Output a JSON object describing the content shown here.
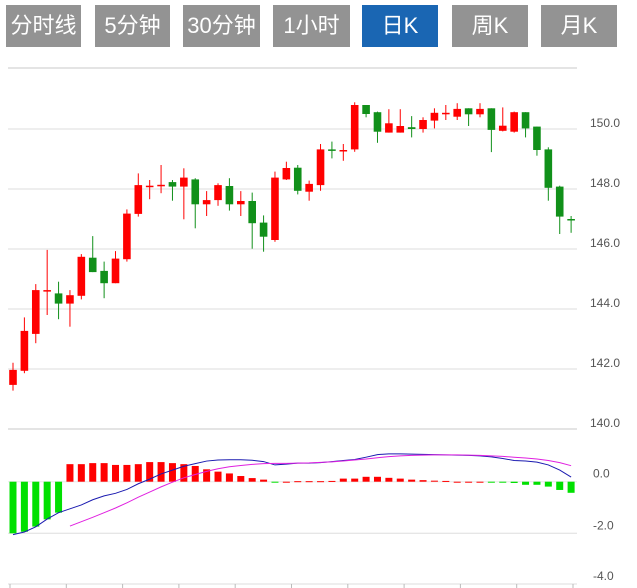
{
  "tabs": [
    {
      "label": "分时线",
      "active": false
    },
    {
      "label": "5分钟",
      "active": false
    },
    {
      "label": "30分钟",
      "active": false
    },
    {
      "label": "1小时",
      "active": false
    },
    {
      "label": "日K",
      "active": true
    },
    {
      "label": "周K",
      "active": false
    },
    {
      "label": "月K",
      "active": false
    }
  ],
  "colors": {
    "up": "#ff0000",
    "down": "#11901a",
    "hist_up": "#ff0000",
    "hist_down": "#00e000",
    "dif": "#1a1ab0",
    "dea": "#e020e0",
    "tab_bg": "#939393",
    "tab_active": "#1a66b3"
  },
  "chart_data": [
    {
      "type": "candlestick",
      "title": "",
      "ylim": [
        140,
        152
      ],
      "yticks": [
        "150.0",
        "148.0",
        "146.0",
        "144.0",
        "142.0",
        "140.0"
      ],
      "ytick_values": [
        150,
        148,
        146,
        144,
        142,
        140
      ],
      "ohlc": [
        [
          141.47,
          142.21,
          141.28,
          141.97
        ],
        [
          141.94,
          143.72,
          141.86,
          143.27
        ],
        [
          143.17,
          144.83,
          142.86,
          144.63
        ],
        [
          144.62,
          145.97,
          143.8,
          144.63
        ],
        [
          144.52,
          144.91,
          143.66,
          144.18
        ],
        [
          144.18,
          144.63,
          143.41,
          144.46
        ],
        [
          144.44,
          145.83,
          144.32,
          145.74
        ],
        [
          145.71,
          146.43,
          145.23,
          145.23
        ],
        [
          145.27,
          145.58,
          144.36,
          144.86
        ],
        [
          144.86,
          145.93,
          144.86,
          145.68
        ],
        [
          145.66,
          147.32,
          145.58,
          147.18
        ],
        [
          147.17,
          148.52,
          147.08,
          148.13
        ],
        [
          148.1,
          148.3,
          147.66,
          148.11
        ],
        [
          148.13,
          148.8,
          147.86,
          148.14
        ],
        [
          148.23,
          148.3,
          147.61,
          148.08
        ],
        [
          148.08,
          148.69,
          146.99,
          148.38
        ],
        [
          148.32,
          148.36,
          146.69,
          147.49
        ],
        [
          147.49,
          147.93,
          147.1,
          147.63
        ],
        [
          147.63,
          148.19,
          147.44,
          148.13
        ],
        [
          148.1,
          148.36,
          147.28,
          147.49
        ],
        [
          147.49,
          147.93,
          147.1,
          147.6
        ],
        [
          147.6,
          147.88,
          146.01,
          146.86
        ],
        [
          146.88,
          147.12,
          145.91,
          146.41
        ],
        [
          146.3,
          148.58,
          146.24,
          148.38
        ],
        [
          148.32,
          148.91,
          148.3,
          148.7
        ],
        [
          148.71,
          148.8,
          147.82,
          147.94
        ],
        [
          147.91,
          148.28,
          147.61,
          148.17
        ],
        [
          148.13,
          149.5,
          147.94,
          149.32
        ],
        [
          149.32,
          149.58,
          149.02,
          149.27
        ],
        [
          149.27,
          149.5,
          148.94,
          149.3
        ],
        [
          149.32,
          150.89,
          149.24,
          150.8
        ],
        [
          150.8,
          150.8,
          150.39,
          150.5
        ],
        [
          150.56,
          150.58,
          149.54,
          149.91
        ],
        [
          149.88,
          150.66,
          149.88,
          150.19
        ],
        [
          149.88,
          150.66,
          149.88,
          150.1
        ],
        [
          150.06,
          150.43,
          149.72,
          150.0
        ],
        [
          150.0,
          150.39,
          149.88,
          150.3
        ],
        [
          150.28,
          150.69,
          150.02,
          150.54
        ],
        [
          150.52,
          150.8,
          150.3,
          150.54
        ],
        [
          150.41,
          150.86,
          150.3,
          150.67
        ],
        [
          150.69,
          150.69,
          150.1,
          150.49
        ],
        [
          150.49,
          150.86,
          150.39,
          150.67
        ],
        [
          150.69,
          150.69,
          149.23,
          149.97
        ],
        [
          149.94,
          150.72,
          149.92,
          150.11
        ],
        [
          149.91,
          150.58,
          149.88,
          150.56
        ],
        [
          150.56,
          150.56,
          149.72,
          150.02
        ],
        [
          150.08,
          150.08,
          149.11,
          149.3
        ],
        [
          149.32,
          149.39,
          147.61,
          148.04
        ],
        [
          148.08,
          148.11,
          146.5,
          147.08
        ],
        [
          147.0,
          147.1,
          146.54,
          146.96
        ]
      ]
    },
    {
      "type": "macd",
      "ylim": [
        -4,
        1.7
      ],
      "yticks": [
        "0.0",
        "-2.0",
        "-4.0"
      ],
      "ytick_values": [
        0,
        -2,
        -4
      ],
      "histogram": [
        -2.0,
        -1.94,
        -1.74,
        -1.46,
        -1.2,
        0.68,
        0.68,
        0.72,
        0.72,
        0.65,
        0.65,
        0.68,
        0.76,
        0.76,
        0.72,
        0.68,
        0.61,
        0.48,
        0.39,
        0.32,
        0.22,
        0.14,
        0.08,
        -0.02,
        0.0,
        0.02,
        0.02,
        0.02,
        0.03,
        0.12,
        0.12,
        0.19,
        0.19,
        0.15,
        0.12,
        0.08,
        0.06,
        0.04,
        0.03,
        0.0,
        0.0,
        0.0,
        -0.03,
        -0.03,
        -0.05,
        -0.12,
        -0.12,
        -0.19,
        -0.32,
        -0.43
      ],
      "dif": [
        -2.05,
        -1.95,
        -1.75,
        -1.45,
        -1.2,
        -1.05,
        -0.9,
        -0.7,
        -0.55,
        -0.45,
        -0.3,
        -0.08,
        0.1,
        0.3,
        0.45,
        0.6,
        0.7,
        0.8,
        0.84,
        0.85,
        0.85,
        0.83,
        0.78,
        0.65,
        0.68,
        0.72,
        0.72,
        0.74,
        0.78,
        0.82,
        0.86,
        0.95,
        1.05,
        1.08,
        1.08,
        1.07,
        1.06,
        1.05,
        1.04,
        1.03,
        1.02,
        1.0,
        0.96,
        0.9,
        0.82,
        0.8,
        0.76,
        0.65,
        0.45,
        0.18
      ],
      "dea": [
        null,
        null,
        null,
        null,
        null,
        -1.72,
        -1.55,
        -1.38,
        -1.2,
        -1.02,
        -0.82,
        -0.6,
        -0.4,
        -0.2,
        -0.02,
        0.15,
        0.28,
        0.4,
        0.5,
        0.58,
        0.63,
        0.67,
        0.7,
        0.71,
        0.71,
        0.72,
        0.73,
        0.75,
        0.77,
        0.8,
        0.84,
        0.88,
        0.93,
        0.97,
        1.0,
        1.02,
        1.03,
        1.04,
        1.04,
        1.04,
        1.03,
        1.02,
        1.0,
        0.98,
        0.95,
        0.92,
        0.88,
        0.82,
        0.74,
        0.62
      ]
    }
  ]
}
